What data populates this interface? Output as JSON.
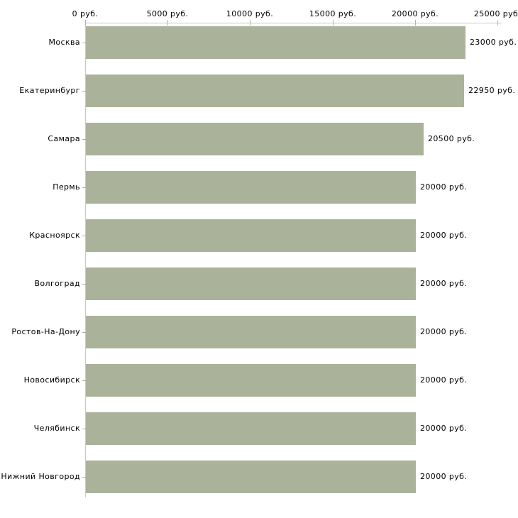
{
  "chart_data": {
    "type": "bar",
    "orientation": "horizontal",
    "title": "",
    "xlabel": "",
    "ylabel": "",
    "unit": "руб.",
    "categories": [
      "Москва",
      "Екатеринбург",
      "Самара",
      "Пермь",
      "Красноярск",
      "Волгоград",
      "Ростов-На-Дону",
      "Новосибирск",
      "Челябинск",
      "Нижний Новгород"
    ],
    "values": [
      23000,
      22950,
      20500,
      20000,
      20000,
      20000,
      20000,
      20000,
      20000,
      20000
    ],
    "value_labels": [
      "23000 руб.",
      "22950 руб.",
      "20500 руб.",
      "20000 руб.",
      "20000 руб.",
      "20000 руб.",
      "20000 руб.",
      "20000 руб.",
      "20000 руб.",
      "20000 руб."
    ],
    "x_ticks": [
      0,
      5000,
      10000,
      15000,
      20000,
      25000
    ],
    "x_tick_labels": [
      "0 руб.",
      "5000 руб.",
      "10000 руб.",
      "15000 руб.",
      "20000 руб.",
      "25000 руб."
    ],
    "xlim": [
      0,
      25000
    ],
    "axis_position": "top",
    "grid": false,
    "legend": false
  },
  "colors": {
    "bar": "#abb29a",
    "axis_line": "#c9c9c9",
    "x_tick_mark": "#b9b98e",
    "category_tick_mark": "#a9a9a0",
    "text": "#000000",
    "background": "#ffffff"
  }
}
